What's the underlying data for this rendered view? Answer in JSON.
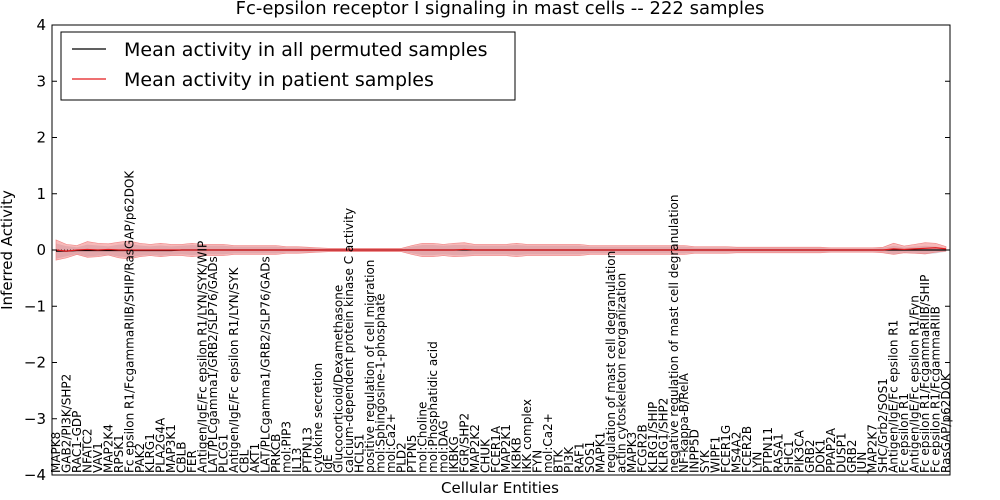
{
  "chart_data": {
    "type": "line",
    "title": "Fc-epsilon receptor I signaling in mast cells -- 222 samples",
    "xlabel": "Cellular Entities",
    "ylabel": "Inferred Activity",
    "ylim": [
      -4,
      4
    ],
    "yticks": [
      -4,
      -3,
      -2,
      -1,
      0,
      1,
      2,
      3,
      4
    ],
    "ytick_labels": [
      "−4",
      "−3",
      "−2",
      "−1",
      "0",
      "1",
      "2",
      "3",
      "4"
    ],
    "legend_position": "top-left",
    "colors": {
      "permuted": "#000000",
      "patient": "#e31a1c",
      "band_patient": "#f08080",
      "band_permuted": "#b0b8c8"
    },
    "series": [
      {
        "name": "Mean activity in all permuted samples",
        "color": "#000000"
      },
      {
        "name": "Mean activity in patient samples",
        "color": "#e31a1c"
      }
    ],
    "entities": [
      {
        "label": "MAPK8",
        "mean_patient": 0.0,
        "mean_permuted": -0.02,
        "band": 0.18
      },
      {
        "label": "GAB2/PI3K/SHP2",
        "mean_patient": -0.02,
        "mean_permuted": -0.02,
        "band": 0.12
      },
      {
        "label": "RAC1-GDP",
        "mean_patient": 0.0,
        "mean_permuted": -0.01,
        "band": 0.08
      },
      {
        "label": "NFATC2",
        "mean_patient": 0.01,
        "mean_permuted": -0.01,
        "band": 0.14
      },
      {
        "label": "VAV1",
        "mean_patient": 0.0,
        "mean_permuted": -0.01,
        "band": 0.12
      },
      {
        "label": "MAP2K4",
        "mean_patient": 0.01,
        "mean_permuted": -0.01,
        "band": 0.1
      },
      {
        "label": "RPSK1",
        "mean_patient": 0.0,
        "mean_permuted": -0.01,
        "band": 0.14
      },
      {
        "label": "Fc epsilon R1/FcgammaRIIB/SHIP/RasGAP/p62DOK",
        "mean_patient": 0.0,
        "mean_permuted": -0.01,
        "band": 0.16
      },
      {
        "label": "PAK2",
        "mean_patient": 0.0,
        "mean_permuted": -0.01,
        "band": 0.12
      },
      {
        "label": "KLRG1",
        "mean_patient": 0.0,
        "mean_permuted": -0.01,
        "band": 0.1
      },
      {
        "label": "PLA2G4A",
        "mean_patient": 0.0,
        "mean_permuted": -0.01,
        "band": 0.12
      },
      {
        "label": "MAP3K1",
        "mean_patient": 0.0,
        "mean_permuted": -0.01,
        "band": 0.1
      },
      {
        "label": "CBLB",
        "mean_patient": 0.0,
        "mean_permuted": 0.0,
        "band": 0.1
      },
      {
        "label": "FER",
        "mean_patient": 0.0,
        "mean_permuted": 0.0,
        "band": 0.12
      },
      {
        "label": "Antigen/IgE/Fc epsilon R1/LYN/SYK/WIP",
        "mean_patient": 0.0,
        "mean_permuted": 0.0,
        "band": 0.1
      },
      {
        "label": "LAT/PLCgamma1/GRB2/SLP76/GADs",
        "mean_patient": 0.0,
        "mean_permuted": 0.0,
        "band": 0.1
      },
      {
        "label": "PLCG1",
        "mean_patient": 0.0,
        "mean_permuted": 0.0,
        "band": 0.1
      },
      {
        "label": "Antigen/IgE/Fc epsilon R1/LYN/SYK",
        "mean_patient": 0.0,
        "mean_permuted": 0.0,
        "band": 0.08
      },
      {
        "label": "CBL",
        "mean_patient": 0.0,
        "mean_permuted": 0.0,
        "band": 0.08
      },
      {
        "label": "AKT1",
        "mean_patient": 0.0,
        "mean_permuted": 0.0,
        "band": 0.08
      },
      {
        "label": "LAT/PLCgamma1/GRB2/SLP76/GADs",
        "mean_patient": 0.0,
        "mean_permuted": 0.0,
        "band": 0.08
      },
      {
        "label": "PRKCB",
        "mean_patient": 0.0,
        "mean_permuted": 0.0,
        "band": 0.08
      },
      {
        "label": "mol:PIP3",
        "mean_patient": 0.0,
        "mean_permuted": 0.0,
        "band": 0.06
      },
      {
        "label": "IL13",
        "mean_patient": 0.0,
        "mean_permuted": 0.0,
        "band": 0.06
      },
      {
        "label": "PTPN13",
        "mean_patient": 0.0,
        "mean_permuted": 0.0,
        "band": 0.05
      },
      {
        "label": "cytokine secretion",
        "mean_patient": 0.0,
        "mean_permuted": 0.0,
        "band": 0.04
      },
      {
        "label": "IgE",
        "mean_patient": 0.0,
        "mean_permuted": 0.0,
        "band": 0.03
      },
      {
        "label": "Glucocorticoid/Dexamethasone",
        "mean_patient": 0.0,
        "mean_permuted": 0.0,
        "band": 0.03
      },
      {
        "label": "calcium-dependent protein kinase C activity",
        "mean_patient": 0.0,
        "mean_permuted": 0.0,
        "band": 0.03
      },
      {
        "label": "HCLS1",
        "mean_patient": 0.0,
        "mean_permuted": 0.0,
        "band": 0.03
      },
      {
        "label": "positive regulation of cell migration",
        "mean_patient": 0.0,
        "mean_permuted": 0.0,
        "band": 0.03
      },
      {
        "label": "mol:Sphingosine-1-phosphate",
        "mean_patient": 0.0,
        "mean_permuted": 0.0,
        "band": 0.03
      },
      {
        "label": "mol:Ca2+",
        "mean_patient": 0.0,
        "mean_permuted": 0.0,
        "band": 0.03
      },
      {
        "label": "PLD2",
        "mean_patient": 0.0,
        "mean_permuted": 0.0,
        "band": 0.03
      },
      {
        "label": "PTPN5",
        "mean_patient": 0.0,
        "mean_permuted": 0.0,
        "band": 0.08
      },
      {
        "label": "mol:Choline",
        "mean_patient": 0.0,
        "mean_permuted": 0.0,
        "band": 0.12
      },
      {
        "label": "mol:Phosphatidic acid",
        "mean_patient": 0.0,
        "mean_permuted": 0.0,
        "band": 0.12
      },
      {
        "label": "mol:DAG",
        "mean_patient": 0.0,
        "mean_permuted": 0.0,
        "band": 0.1
      },
      {
        "label": "IKBKG",
        "mean_patient": 0.0,
        "mean_permuted": 0.0,
        "band": 0.12
      },
      {
        "label": "FGR/SHP2",
        "mean_patient": 0.01,
        "mean_permuted": 0.0,
        "band": 0.12
      },
      {
        "label": "MAP2K2",
        "mean_patient": 0.0,
        "mean_permuted": 0.0,
        "band": 0.1
      },
      {
        "label": "CHUK",
        "mean_patient": 0.0,
        "mean_permuted": 0.0,
        "band": 0.1
      },
      {
        "label": "FCER1A",
        "mean_patient": 0.0,
        "mean_permuted": 0.0,
        "band": 0.1
      },
      {
        "label": "MAP2K1",
        "mean_patient": 0.0,
        "mean_permuted": 0.0,
        "band": 0.1
      },
      {
        "label": "IKBKB",
        "mean_patient": 0.0,
        "mean_permuted": 0.0,
        "band": 0.12
      },
      {
        "label": "IKK complex",
        "mean_patient": 0.0,
        "mean_permuted": 0.0,
        "band": 0.1
      },
      {
        "label": "FYN",
        "mean_patient": 0.0,
        "mean_permuted": 0.0,
        "band": 0.1
      },
      {
        "label": "mol:Ca2+",
        "mean_patient": 0.0,
        "mean_permuted": 0.0,
        "band": 0.1
      },
      {
        "label": "BTK",
        "mean_patient": 0.0,
        "mean_permuted": 0.0,
        "band": 0.1
      },
      {
        "label": "PI3K",
        "mean_patient": 0.0,
        "mean_permuted": 0.0,
        "band": 0.1
      },
      {
        "label": "RAF1",
        "mean_patient": 0.0,
        "mean_permuted": 0.0,
        "band": 0.1
      },
      {
        "label": "SOS1",
        "mean_patient": 0.0,
        "mean_permuted": 0.0,
        "band": 0.08
      },
      {
        "label": "MAPK1",
        "mean_patient": 0.0,
        "mean_permuted": 0.0,
        "band": 0.08
      },
      {
        "label": "regulation of mast cell degranulation",
        "mean_patient": 0.0,
        "mean_permuted": 0.0,
        "band": 0.08
      },
      {
        "label": "actin cytoskeleton reorganization",
        "mean_patient": 0.0,
        "mean_permuted": 0.0,
        "band": 0.08
      },
      {
        "label": "MAPK3",
        "mean_patient": 0.0,
        "mean_permuted": 0.0,
        "band": 0.08
      },
      {
        "label": "FCGR2B",
        "mean_patient": 0.0,
        "mean_permuted": 0.0,
        "band": 0.08
      },
      {
        "label": "KLRG1/SHIP",
        "mean_patient": 0.0,
        "mean_permuted": 0.0,
        "band": 0.08
      },
      {
        "label": "KLRG1/SHP2",
        "mean_patient": 0.0,
        "mean_permuted": 0.0,
        "band": 0.08
      },
      {
        "label": "negative regulation of mast cell degranulation",
        "mean_patient": 0.0,
        "mean_permuted": 0.0,
        "band": 0.08
      },
      {
        "label": "NF-kappa-B/RelA",
        "mean_patient": 0.0,
        "mean_permuted": 0.0,
        "band": 0.08
      },
      {
        "label": "INPP5D",
        "mean_patient": 0.0,
        "mean_permuted": 0.0,
        "band": 0.06
      },
      {
        "label": "SYK",
        "mean_patient": 0.0,
        "mean_permuted": 0.0,
        "band": 0.06
      },
      {
        "label": "WIPF1",
        "mean_patient": 0.0,
        "mean_permuted": 0.0,
        "band": 0.06
      },
      {
        "label": "FCER1G",
        "mean_patient": 0.0,
        "mean_permuted": 0.0,
        "band": 0.06
      },
      {
        "label": "MS4A2",
        "mean_patient": 0.0,
        "mean_permuted": 0.0,
        "band": 0.05
      },
      {
        "label": "FCER2B",
        "mean_patient": 0.0,
        "mean_permuted": 0.0,
        "band": 0.05
      },
      {
        "label": "LYN",
        "mean_patient": 0.0,
        "mean_permuted": 0.0,
        "band": 0.05
      },
      {
        "label": "PTPN11",
        "mean_patient": 0.0,
        "mean_permuted": 0.0,
        "band": 0.05
      },
      {
        "label": "RASA1",
        "mean_patient": 0.0,
        "mean_permuted": 0.0,
        "band": 0.05
      },
      {
        "label": "SHC1",
        "mean_patient": 0.0,
        "mean_permuted": 0.0,
        "band": 0.05
      },
      {
        "label": "PIK3CA",
        "mean_patient": 0.0,
        "mean_permuted": 0.0,
        "band": 0.05
      },
      {
        "label": "GRB2",
        "mean_patient": 0.0,
        "mean_permuted": 0.0,
        "band": 0.05
      },
      {
        "label": "DOK1",
        "mean_patient": 0.0,
        "mean_permuted": 0.0,
        "band": 0.05
      },
      {
        "label": "PPAP2A",
        "mean_patient": 0.0,
        "mean_permuted": 0.0,
        "band": 0.04
      },
      {
        "label": "DUSP1",
        "mean_patient": 0.0,
        "mean_permuted": 0.0,
        "band": 0.04
      },
      {
        "label": "GRB2",
        "mean_patient": 0.0,
        "mean_permuted": 0.0,
        "band": 0.04
      },
      {
        "label": "JUN",
        "mean_patient": 0.0,
        "mean_permuted": 0.0,
        "band": 0.04
      },
      {
        "label": "MAP2K7",
        "mean_patient": 0.0,
        "mean_permuted": 0.0,
        "band": 0.04
      },
      {
        "label": "SHC/Grb2/SOS1",
        "mean_patient": 0.0,
        "mean_permuted": 0.0,
        "band": 0.05
      },
      {
        "label": "Antigen/IgE/Fc epsilon R1",
        "mean_patient": 0.02,
        "mean_permuted": 0.0,
        "band": 0.1
      },
      {
        "label": "Fc epsilon R1",
        "mean_patient": 0.01,
        "mean_permuted": 0.0,
        "band": 0.06
      },
      {
        "label": "Antigen/IgE/Fc epsilon R1/Fyn",
        "mean_patient": 0.02,
        "mean_permuted": 0.0,
        "band": 0.08
      },
      {
        "label": "Fc epsilon R1/FcgammaRIIB/SHIP",
        "mean_patient": 0.03,
        "mean_permuted": 0.0,
        "band": 0.1
      },
      {
        "label": "Fc epsilon R1/FcgammaRIIB",
        "mean_patient": 0.04,
        "mean_permuted": 0.0,
        "band": 0.08
      },
      {
        "label": "RasGAP/p62DOK",
        "mean_patient": 0.02,
        "mean_permuted": 0.0,
        "band": 0.04
      }
    ]
  }
}
